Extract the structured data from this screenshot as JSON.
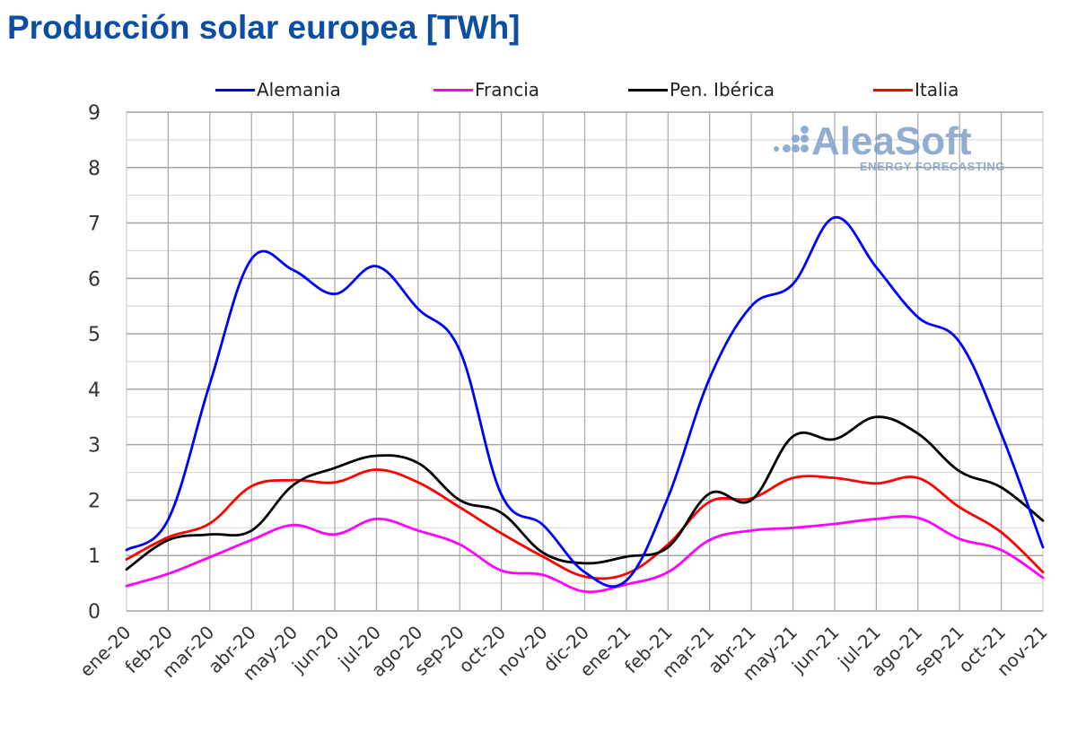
{
  "title": "Producción solar europea [TWh]",
  "watermark": {
    "brand": "AleaSoft",
    "tagline": "ENERGY FORECASTING"
  },
  "chart_data": {
    "type": "line",
    "title": "Producción solar europea [TWh]",
    "xlabel": "",
    "ylabel": "",
    "ylim": [
      0,
      9
    ],
    "yticks": [
      0,
      1,
      2,
      3,
      4,
      5,
      6,
      7,
      8,
      9
    ],
    "y_minor_step": 0.5,
    "grid": true,
    "legend_position": "top",
    "categories": [
      "ene-20",
      "feb-20",
      "mar-20",
      "abr-20",
      "may-20",
      "jun-20",
      "jul-20",
      "ago-20",
      "sep-20",
      "oct-20",
      "nov-20",
      "dic-20",
      "ene-21",
      "feb-21",
      "mar-21",
      "abr-21",
      "may-21",
      "jun-21",
      "jul-21",
      "ago-21",
      "sep-21",
      "oct-21",
      "nov-21"
    ],
    "series": [
      {
        "name": "Alemania",
        "color": "#0000ff",
        "values": [
          1.1,
          1.65,
          4.1,
          6.35,
          6.15,
          5.72,
          6.22,
          5.45,
          4.7,
          2.1,
          1.55,
          0.7,
          0.55,
          2.05,
          4.2,
          5.5,
          5.9,
          7.1,
          6.2,
          5.3,
          4.85,
          3.2,
          1.15
        ]
      },
      {
        "name": "Francia",
        "color": "#ff00ff",
        "values": [
          0.45,
          0.67,
          0.97,
          1.28,
          1.55,
          1.38,
          1.66,
          1.45,
          1.2,
          0.73,
          0.65,
          0.35,
          0.48,
          0.7,
          1.28,
          1.45,
          1.5,
          1.57,
          1.66,
          1.68,
          1.3,
          1.1,
          0.6
        ]
      },
      {
        "name": "Pen. Ibérica",
        "color": "#000000",
        "values": [
          0.75,
          1.28,
          1.38,
          1.45,
          2.27,
          2.58,
          2.8,
          2.67,
          2.0,
          1.77,
          1.05,
          0.86,
          0.98,
          1.15,
          2.12,
          2.0,
          3.15,
          3.1,
          3.5,
          3.2,
          2.52,
          2.23,
          1.63
        ]
      },
      {
        "name": "Italia",
        "color": "#ff0000",
        "values": [
          0.93,
          1.33,
          1.58,
          2.25,
          2.36,
          2.32,
          2.55,
          2.32,
          1.87,
          1.4,
          0.98,
          0.62,
          0.67,
          1.2,
          1.97,
          2.03,
          2.4,
          2.4,
          2.3,
          2.4,
          1.87,
          1.42,
          0.7
        ]
      }
    ]
  }
}
